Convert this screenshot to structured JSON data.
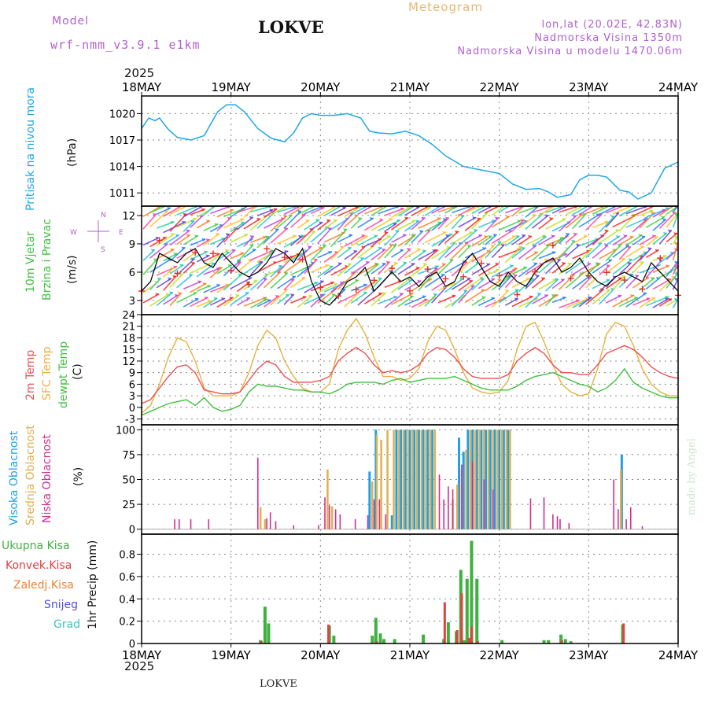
{
  "header": {
    "model_label": "Model",
    "model_name": "wrf-nmm_v3.9.1  e1km",
    "station_title": "LOKVE",
    "meteogram_label": "Meteogram",
    "coords": "lon,lat (20.02E, 42.83N)",
    "altitude": "Nadmorska Visina 1350m",
    "model_altitude": "Nadmorska Visina u modelu 1470.06m",
    "year_top": "2025",
    "year_bottom": "2025",
    "footer_station": "LOKVE",
    "credit": "made by Angel"
  },
  "axis_dates": [
    "18MAY",
    "19MAY",
    "20MAY",
    "21MAY",
    "22MAY",
    "23MAY",
    "24MAY"
  ],
  "panel_labels": {
    "pressure": {
      "name": "Pritisak na nivou mora",
      "unit": "(hPa)"
    },
    "wind": {
      "name1": "10m Vjetar",
      "name2": "Brzina i Pravac",
      "unit": "(m/s)",
      "compass_w": "W",
      "compass_e": "E",
      "compass_n": "N",
      "compass_s": "S"
    },
    "temp": {
      "l1": "2m Temp",
      "l2": "SFC Temp",
      "l3": "dewpt Temp",
      "unit": "(C)"
    },
    "cloud": {
      "l1": "Visoka Oblacnost",
      "l2": "Srednja Oblacnost",
      "l3": "Niska Oblacnost",
      "unit": "(%)"
    },
    "precip": {
      "l1": "Ukupna Kisa",
      "l2": "Konvek.Kisa",
      "l3": "Zaledj.Kisa",
      "l4": "Snijeg",
      "l5": "Grad",
      "unit": "1hr Precip (mm)"
    }
  },
  "colors": {
    "pressure": "#1ea8e8",
    "temp2m": "#f05050",
    "sfc": "#e8b040",
    "dew": "#40c040",
    "high": "#1ea0e8",
    "mid": "#e0b050",
    "low": "#d03090",
    "total": "#40b040",
    "conv": "#e04040",
    "frz": "#f08030",
    "snow": "#5050e0",
    "hail": "#40c0c0",
    "purple": "#b060d0"
  },
  "chart_data": [
    {
      "type": "line",
      "title": "",
      "ylabel": "(hPa)",
      "ylim": [
        1009.5,
        1022
      ],
      "yticks": [
        1011,
        1014,
        1017,
        1020
      ],
      "x_days": [
        0,
        6
      ],
      "series": [
        {
          "name": "Pritisak na nivou mora",
          "x": [
            0,
            0.08,
            0.15,
            0.2,
            0.3,
            0.4,
            0.55,
            0.7,
            0.85,
            0.95,
            1.05,
            1.15,
            1.3,
            1.45,
            1.6,
            1.7,
            1.8,
            1.9,
            2.0,
            2.15,
            2.3,
            2.45,
            2.55,
            2.65,
            2.8,
            2.95,
            3.1,
            3.25,
            3.4,
            3.6,
            3.8,
            4.0,
            4.15,
            4.3,
            4.45,
            4.55,
            4.65,
            4.8,
            4.9,
            5.0,
            5.1,
            5.2,
            5.35,
            5.45,
            5.55,
            5.7,
            5.85,
            6.0
          ],
          "y": [
            1018.3,
            1019.5,
            1019.2,
            1019.5,
            1018.2,
            1017.3,
            1017.0,
            1017.5,
            1020.2,
            1021.0,
            1021.0,
            1020.2,
            1018.3,
            1017.2,
            1016.8,
            1017.8,
            1019.5,
            1020.0,
            1019.8,
            1019.8,
            1020.0,
            1019.5,
            1018.0,
            1017.8,
            1017.7,
            1018.0,
            1017.5,
            1016.5,
            1015.2,
            1014.0,
            1013.6,
            1013.2,
            1012.0,
            1011.4,
            1011.5,
            1011.1,
            1010.5,
            1010.8,
            1012.5,
            1013.0,
            1013.0,
            1012.8,
            1011.3,
            1011.1,
            1010.3,
            1011.0,
            1013.8,
            1014.5
          ]
        }
      ]
    },
    {
      "type": "line",
      "title": "",
      "ylabel": "(m/s)",
      "ylim": [
        1.5,
        13
      ],
      "yticks": [
        3,
        6,
        9,
        12
      ],
      "x_days": [
        0,
        6
      ],
      "series": [
        {
          "name": "10m wind speed",
          "x": [
            0,
            0.1,
            0.2,
            0.3,
            0.4,
            0.5,
            0.6,
            0.7,
            0.8,
            0.9,
            1.0,
            1.1,
            1.2,
            1.3,
            1.4,
            1.5,
            1.6,
            1.7,
            1.8,
            1.9,
            2.0,
            2.1,
            2.2,
            2.3,
            2.4,
            2.5,
            2.6,
            2.7,
            2.8,
            2.9,
            3.0,
            3.1,
            3.2,
            3.3,
            3.4,
            3.5,
            3.6,
            3.7,
            3.8,
            3.9,
            4.0,
            4.1,
            4.2,
            4.3,
            4.4,
            4.5,
            4.6,
            4.7,
            4.8,
            4.9,
            5.0,
            5.1,
            5.2,
            5.3,
            5.4,
            5.5,
            5.6,
            5.7,
            5.8,
            5.9,
            6.0
          ],
          "y": [
            4,
            5,
            8,
            7.5,
            7,
            8,
            8.5,
            7,
            6.5,
            8,
            7,
            6,
            5.5,
            6,
            7,
            8.5,
            8,
            7,
            8.5,
            5,
            3,
            2.5,
            3.5,
            5,
            5.5,
            6.5,
            4,
            5,
            6,
            5,
            5.5,
            4.5,
            5.5,
            6,
            4.5,
            5,
            7,
            8,
            6.5,
            5,
            4.5,
            6,
            5,
            4.5,
            6,
            7,
            7.5,
            6,
            6.5,
            7.5,
            6,
            5,
            4.5,
            5.5,
            6,
            5.5,
            5,
            7,
            6,
            5,
            4
          ]
        }
      ],
      "direction_markers": "+"
    },
    {
      "type": "line",
      "title": "",
      "ylabel": "(C)",
      "ylim": [
        -4.5,
        24
      ],
      "yticks": [
        -3,
        0,
        3,
        6,
        9,
        12,
        15,
        18,
        21,
        24
      ],
      "x_days": [
        0,
        6
      ],
      "series": [
        {
          "name": "2m Temp",
          "x": [
            0,
            0.1,
            0.2,
            0.3,
            0.4,
            0.5,
            0.6,
            0.7,
            0.8,
            0.9,
            1.0,
            1.1,
            1.2,
            1.3,
            1.4,
            1.5,
            1.6,
            1.7,
            1.8,
            1.9,
            2.0,
            2.1,
            2.2,
            2.3,
            2.4,
            2.5,
            2.6,
            2.7,
            2.8,
            2.9,
            3.0,
            3.1,
            3.2,
            3.3,
            3.4,
            3.5,
            3.6,
            3.7,
            3.8,
            3.9,
            4.0,
            4.1,
            4.2,
            4.3,
            4.4,
            4.5,
            4.6,
            4.7,
            4.8,
            4.9,
            5.0,
            5.1,
            5.2,
            5.3,
            5.4,
            5.5,
            5.6,
            5.7,
            5.8,
            5.9,
            6.0
          ],
          "y": [
            1,
            2,
            5,
            8,
            10.5,
            11,
            9,
            4.5,
            4,
            3.5,
            3.5,
            4,
            7,
            10,
            12,
            11,
            8,
            6.5,
            6.5,
            6.5,
            7,
            8,
            12,
            14,
            15.5,
            14,
            11,
            9,
            9.5,
            9,
            9.5,
            11,
            14,
            15.5,
            15,
            13,
            10,
            8,
            7.5,
            7.5,
            7.5,
            8.5,
            12,
            14,
            15.5,
            14,
            11,
            9,
            9,
            8.5,
            8.5,
            11,
            14,
            15,
            16,
            15,
            13,
            10.5,
            9,
            8,
            7.5
          ]
        },
        {
          "name": "SFC Temp",
          "x": [
            0,
            0.1,
            0.2,
            0.3,
            0.4,
            0.5,
            0.6,
            0.7,
            0.8,
            0.9,
            1.0,
            1.1,
            1.2,
            1.3,
            1.4,
            1.5,
            1.6,
            1.7,
            1.8,
            1.9,
            2.0,
            2.1,
            2.2,
            2.3,
            2.4,
            2.5,
            2.6,
            2.7,
            2.8,
            2.9,
            3.0,
            3.1,
            3.2,
            3.3,
            3.4,
            3.5,
            3.6,
            3.7,
            3.8,
            3.9,
            4.0,
            4.1,
            4.2,
            4.3,
            4.4,
            4.5,
            4.6,
            4.7,
            4.8,
            4.9,
            5.0,
            5.1,
            5.2,
            5.3,
            5.4,
            5.5,
            5.6,
            5.7,
            5.8,
            5.9,
            6.0
          ],
          "y": [
            -1.5,
            0.5,
            6,
            13,
            18,
            17,
            12,
            5,
            3,
            3,
            3,
            4,
            9,
            16,
            20,
            18,
            12,
            8,
            5,
            4,
            4,
            6,
            15,
            20,
            23,
            19,
            13,
            8,
            8,
            7,
            7.5,
            10,
            17,
            21,
            20,
            15,
            9,
            5,
            4,
            3.5,
            4,
            7,
            15,
            21,
            22,
            17,
            11,
            6,
            4,
            3,
            3.5,
            10,
            19,
            22,
            21,
            16,
            10,
            6,
            4,
            3,
            3
          ]
        },
        {
          "name": "dewpt Temp",
          "x": [
            0,
            0.1,
            0.2,
            0.3,
            0.4,
            0.5,
            0.6,
            0.7,
            0.8,
            0.9,
            1.0,
            1.1,
            1.2,
            1.3,
            1.4,
            1.5,
            1.6,
            1.7,
            1.8,
            1.9,
            2.0,
            2.1,
            2.2,
            2.3,
            2.4,
            2.5,
            2.6,
            2.7,
            2.8,
            2.9,
            3.0,
            3.1,
            3.2,
            3.3,
            3.4,
            3.5,
            3.6,
            3.7,
            3.8,
            3.9,
            4.0,
            4.1,
            4.2,
            4.3,
            4.4,
            4.5,
            4.6,
            4.7,
            4.8,
            4.9,
            5.0,
            5.1,
            5.2,
            5.3,
            5.4,
            5.5,
            5.6,
            5.7,
            5.8,
            5.9,
            6.0
          ],
          "y": [
            -2,
            -1,
            0,
            1,
            1.5,
            2,
            0.5,
            2.5,
            0,
            -1,
            -0.5,
            0.5,
            4,
            6,
            5.5,
            5.5,
            5,
            4.5,
            4.5,
            4,
            4,
            3.5,
            4.5,
            6,
            6.5,
            6.5,
            6.5,
            6,
            7,
            7.5,
            6.5,
            7,
            7.5,
            7.5,
            7.5,
            8,
            7,
            6,
            5,
            4.5,
            4.5,
            4.5,
            5.5,
            7,
            8,
            8.5,
            9,
            8,
            7,
            6,
            5.5,
            4,
            5,
            7,
            10,
            6.5,
            5,
            4,
            3,
            2.5,
            2.5
          ]
        }
      ]
    },
    {
      "type": "bar",
      "title": "",
      "ylabel": "(%)",
      "ylim": [
        -5,
        105
      ],
      "yticks": [
        0,
        25,
        50,
        75,
        100
      ],
      "x_days": [
        0,
        6
      ],
      "series": [
        {
          "name": "Visoka Oblacnost",
          "x": [
            2.55,
            2.62,
            2.8,
            2.85,
            2.9,
            2.95,
            3.0,
            3.05,
            3.1,
            3.15,
            3.2,
            3.25,
            3.55,
            3.6,
            3.65,
            3.7,
            3.75,
            3.8,
            3.85,
            3.9,
            3.95,
            4.0,
            4.05,
            4.1,
            5.37
          ],
          "values": [
            58,
            100,
            14,
            100,
            100,
            100,
            100,
            100,
            100,
            100,
            100,
            100,
            92,
            78,
            100,
            100,
            100,
            100,
            100,
            100,
            100,
            100,
            100,
            100,
            75
          ]
        },
        {
          "name": "Srednja Oblacnost",
          "x": [
            1.33,
            1.38,
            2.08,
            2.13,
            2.58,
            2.63,
            2.68,
            2.75,
            2.82,
            2.88,
            2.93,
            2.98,
            3.03,
            3.08,
            3.13,
            3.18,
            3.23,
            3.28,
            3.48,
            3.53,
            3.58,
            3.63,
            3.68,
            3.73,
            3.78,
            3.83,
            3.88,
            3.93,
            3.98,
            4.03,
            4.08,
            4.12,
            5.36
          ],
          "values": [
            22,
            10,
            60,
            23,
            48,
            95,
            90,
            100,
            100,
            100,
            100,
            100,
            100,
            100,
            100,
            100,
            100,
            100,
            30,
            45,
            60,
            80,
            100,
            100,
            100,
            100,
            100,
            100,
            100,
            100,
            100,
            100,
            60
          ]
        },
        {
          "name": "Niska Oblacnost",
          "x": [
            0.37,
            0.42,
            0.55,
            0.75,
            1.3,
            1.4,
            1.44,
            1.5,
            1.7,
            1.98,
            2.05,
            2.1,
            2.17,
            2.22,
            2.39,
            2.53,
            2.6,
            2.66,
            2.73,
            3.33,
            3.38,
            3.43,
            3.48,
            3.58,
            3.7,
            3.83,
            3.93,
            4.35,
            4.5,
            4.6,
            4.65,
            4.68,
            4.78,
            5.28,
            5.33,
            5.42,
            5.47,
            5.6
          ],
          "values": [
            10,
            10,
            10,
            10,
            72,
            11,
            17,
            8,
            4,
            4,
            32,
            24,
            20,
            15,
            10,
            14,
            30,
            30,
            15,
            55,
            30,
            43,
            40,
            65,
            68,
            50,
            40,
            31,
            32,
            15,
            13,
            10,
            6,
            50,
            20,
            10,
            22,
            3
          ]
        }
      ]
    },
    {
      "type": "bar",
      "title": "",
      "ylabel": "1hr Precip (mm)",
      "ylim": [
        0,
        0.98
      ],
      "yticks": [
        0,
        0.2,
        0.4,
        0.6,
        0.8
      ],
      "x_days": [
        0,
        6
      ],
      "series": [
        {
          "name": "Ukupna Kisa",
          "x": [
            1.33,
            1.38,
            1.42,
            2.1,
            2.15,
            2.58,
            2.62,
            2.67,
            2.71,
            2.83,
            3.15,
            3.38,
            3.43,
            3.52,
            3.57,
            3.61,
            3.64,
            3.69,
            3.75,
            4.03,
            4.5,
            4.55,
            4.69,
            4.74,
            4.8,
            5.38
          ],
          "values": [
            0.03,
            0.33,
            0.18,
            0.16,
            0.07,
            0.07,
            0.23,
            0.09,
            0.04,
            0.04,
            0.08,
            0.04,
            0.19,
            0.11,
            0.66,
            0.03,
            0.58,
            0.92,
            0.58,
            0.03,
            0.03,
            0.03,
            0.08,
            0.04,
            0.02,
            0.17
          ]
        },
        {
          "name": "Konvek.Kisa",
          "x": [
            1.34,
            2.09,
            2.63,
            3.39,
            3.53,
            3.58,
            3.66,
            3.69,
            3.76,
            4.7,
            5.39
          ],
          "values": [
            0.02,
            0.17,
            0.02,
            0.37,
            0.12,
            0.45,
            0.05,
            0.15,
            0.02,
            0.03,
            0.18
          ]
        }
      ]
    }
  ]
}
